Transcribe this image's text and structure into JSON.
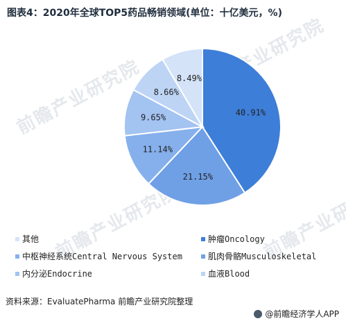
{
  "title": "图表4：2020年全球TOP5药品畅销领域(单位：十亿美元，%)",
  "watermark": "前瞻产业研究院",
  "source": "资料来源：EvaluatePharma 前瞻产业研究院整理",
  "credit": "@前瞻经济学人APP",
  "chart_data": {
    "type": "pie",
    "title": "图表4：2020年全球TOP5药品畅销领域(单位：十亿美元，%)",
    "slices": [
      {
        "name": "肿瘤Oncology",
        "value": 40.91,
        "label": "40.91%",
        "color": "#3d7ed8"
      },
      {
        "name": "肌肉骨骼Musculoskeletal",
        "value": 21.15,
        "label": "21.15%",
        "color": "#6fa0e6"
      },
      {
        "name": "中枢神经系统Central Nervous System",
        "value": 11.14,
        "label": "11.14%",
        "color": "#86b0ec"
      },
      {
        "name": "内分泌Endocrine",
        "value": 9.65,
        "label": "9.65%",
        "color": "#a3c3f1"
      },
      {
        "name": "血液Blood",
        "value": 8.66,
        "label": "8.66%",
        "color": "#bdd4f5"
      },
      {
        "name": "其他",
        "value": 8.49,
        "label": "8.49%",
        "color": "#d4e3f8"
      }
    ],
    "legend": [
      {
        "name": "其他",
        "color": "#d4e3f8"
      },
      {
        "name": "肿瘤Oncology",
        "color": "#3d7ed8"
      },
      {
        "name": "中枢神经系统Central Nervous System",
        "color": "#86b0ec"
      },
      {
        "name": "肌肉骨骼Musculoskeletal",
        "color": "#6fa0e6"
      },
      {
        "name": "内分泌Endocrine",
        "color": "#a3c3f1"
      },
      {
        "name": "血液Blood",
        "color": "#bdd4f5"
      }
    ],
    "legend_position": "bottom"
  }
}
